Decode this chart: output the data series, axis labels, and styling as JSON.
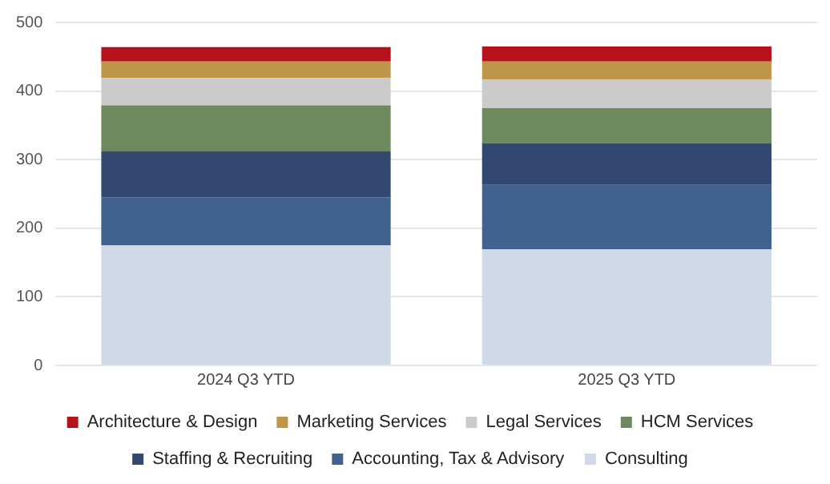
{
  "chart_data": {
    "type": "bar",
    "stacked": true,
    "categories": [
      "2024 Q3 YTD",
      "2025 Q3 YTD"
    ],
    "series": [
      {
        "name": "Consulting",
        "color": "#d0d9e8",
        "values": [
          175,
          169
        ]
      },
      {
        "name": "Accounting, Tax & Advisory",
        "color": "#41618f",
        "values": [
          70,
          94
        ]
      },
      {
        "name": "Staffing & Recruiting",
        "color": "#334870",
        "values": [
          67,
          61
        ]
      },
      {
        "name": "HCM Services",
        "color": "#6d8a5f",
        "values": [
          67,
          51
        ]
      },
      {
        "name": "Legal Services",
        "color": "#cbcbcb",
        "values": [
          40,
          42
        ]
      },
      {
        "name": "Marketing Services",
        "color": "#bf9649",
        "values": [
          24,
          26
        ]
      },
      {
        "name": "Architecture & Design",
        "color": "#b5121b",
        "values": [
          21,
          22
        ]
      }
    ],
    "ylim": [
      0,
      500
    ],
    "yticks": [
      0,
      100,
      200,
      300,
      400,
      500
    ],
    "grid": "y",
    "legend": "bottom"
  }
}
